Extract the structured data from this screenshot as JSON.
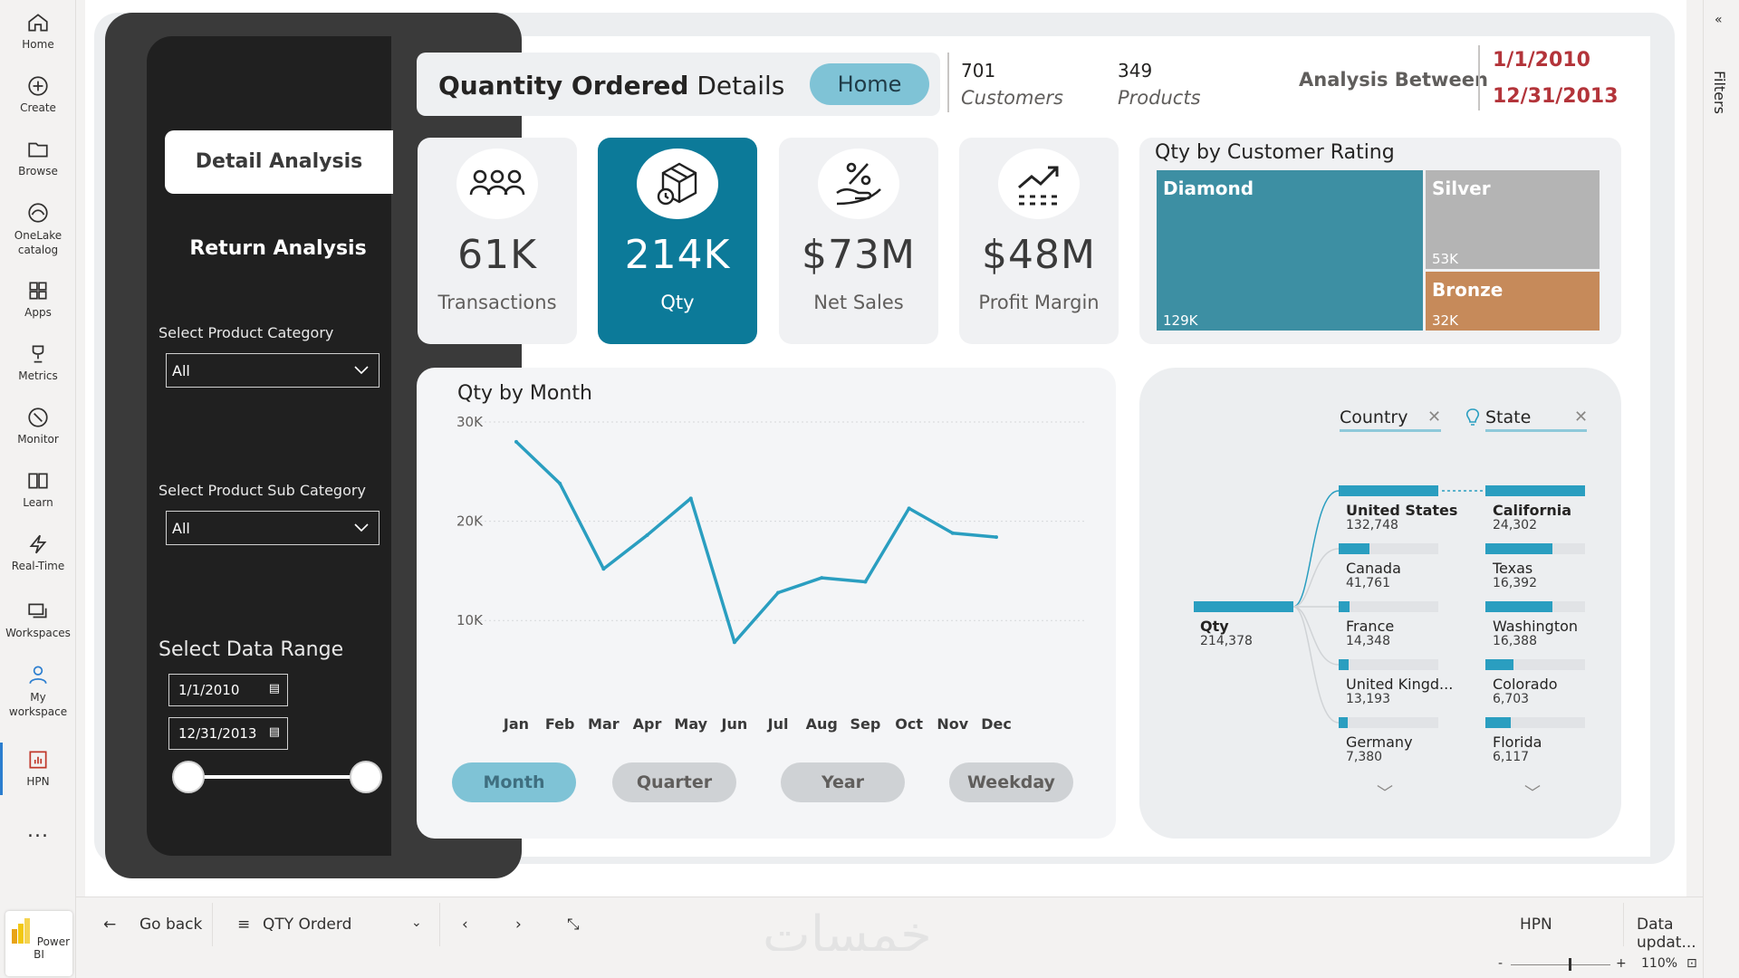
{
  "rail": {
    "items": [
      {
        "label": "Home",
        "icon": "home-icon"
      },
      {
        "label": "Create",
        "icon": "plus-circle-icon"
      },
      {
        "label": "Browse",
        "icon": "folder-icon"
      },
      {
        "label": "OneLake catalog",
        "icon": "onelake-icon"
      },
      {
        "label": "Apps",
        "icon": "apps-icon"
      },
      {
        "label": "Metrics",
        "icon": "trophy-icon"
      },
      {
        "label": "Monitor",
        "icon": "monitor-icon"
      },
      {
        "label": "Learn",
        "icon": "book-icon"
      },
      {
        "label": "Real-Time",
        "icon": "lightning-icon"
      },
      {
        "label": "Workspaces",
        "icon": "workspaces-icon"
      },
      {
        "label": "My workspace",
        "icon": "person-icon"
      },
      {
        "label": "HPN",
        "icon": "report-icon"
      }
    ],
    "more": "...",
    "product": "Power BI"
  },
  "filters_label": "Filters",
  "side": {
    "detail": "Detail Analysis",
    "return": "Return Analysis",
    "category_label": "Select Product Category",
    "category_value": "All",
    "subcategory_label": "Select Product Sub Category",
    "subcategory_value": "All",
    "range_label": "Select Data Range",
    "start": "1/1/2010",
    "end": "12/31/2013"
  },
  "header": {
    "title_bold": "Quantity Ordered",
    "title_rest": " Details",
    "home": "Home",
    "customers_num": "701",
    "customers_lbl": "Customers",
    "products_num": "349",
    "products_lbl": "Products",
    "analysis": "Analysis Between",
    "date_start": "1/1/2010",
    "date_end": "12/31/2013"
  },
  "kpis": [
    {
      "value": "61K",
      "label": "Transactions",
      "icon": "people-icon"
    },
    {
      "value": "214K",
      "label": "Qty",
      "icon": "package-icon"
    },
    {
      "value": "$73M",
      "label": "Net Sales",
      "icon": "percent-hand-icon"
    },
    {
      "value": "$48M",
      "label": "Profit Margin",
      "icon": "trend-chart-icon"
    }
  ],
  "treemap": {
    "title": "Qty by Customer Rating",
    "tiles": [
      {
        "name": "Diamond",
        "value": "129K",
        "color": "#3d8fa3"
      },
      {
        "name": "Silver",
        "value": "53K",
        "color": "#b4b4b4"
      },
      {
        "name": "Bronze",
        "value": "32K",
        "color": "#c68a5a"
      }
    ]
  },
  "chart_data": {
    "type": "line",
    "title": "Qty by Month",
    "categories": [
      "Jan",
      "Feb",
      "Mar",
      "Apr",
      "May",
      "Jun",
      "Jul",
      "Aug",
      "Sep",
      "Oct",
      "Nov",
      "Dec"
    ],
    "values": [
      28000,
      23800,
      15200,
      18600,
      22300,
      7800,
      12800,
      14300,
      13900,
      21300,
      18800,
      18400
    ],
    "yticks": [
      "30K",
      "20K",
      "10K"
    ],
    "ylim": [
      5000,
      30000
    ],
    "color": "#2a9ec0",
    "grid": true
  },
  "period_buttons": [
    "Month",
    "Quarter",
    "Year",
    "Weekday"
  ],
  "decomp": {
    "head1": "Country",
    "head2": "State",
    "root": {
      "name": "Qty",
      "value": "214,378"
    },
    "countries": [
      {
        "name": "United States",
        "value": "132,748",
        "frac": 1.0
      },
      {
        "name": "Canada",
        "value": "41,761",
        "frac": 0.31
      },
      {
        "name": "France",
        "value": "14,348",
        "frac": 0.11
      },
      {
        "name": "United Kingd...",
        "value": "13,193",
        "frac": 0.1
      },
      {
        "name": "Germany",
        "value": "7,380",
        "frac": 0.06
      }
    ],
    "states": [
      {
        "name": "California",
        "value": "24,302",
        "frac": 1.0
      },
      {
        "name": "Texas",
        "value": "16,392",
        "frac": 0.67
      },
      {
        "name": "Washington",
        "value": "16,388",
        "frac": 0.67
      },
      {
        "name": "Colorado",
        "value": "6,703",
        "frac": 0.28
      },
      {
        "name": "Florida",
        "value": "6,117",
        "frac": 0.25
      }
    ]
  },
  "bottom": {
    "back": "Go back",
    "page": "QTY Orderd",
    "workspace": "HPN",
    "updated": "Data updat...",
    "zoom": "110%",
    "watermark": "خمسات"
  }
}
